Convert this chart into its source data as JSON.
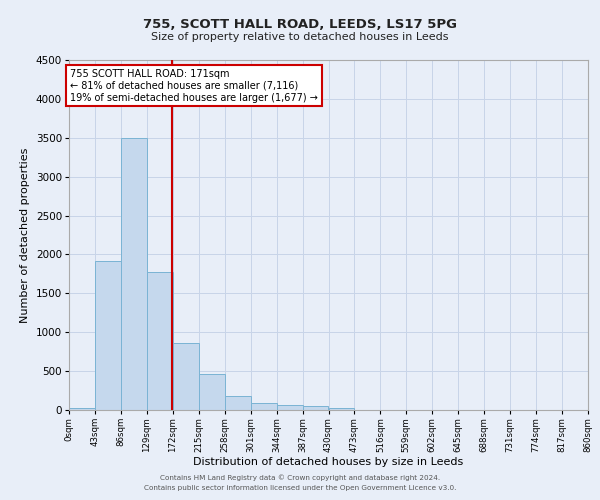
{
  "title_line1": "755, SCOTT HALL ROAD, LEEDS, LS17 5PG",
  "title_line2": "Size of property relative to detached houses in Leeds",
  "xlabel": "Distribution of detached houses by size in Leeds",
  "ylabel": "Number of detached properties",
  "bin_edges": [
    0,
    43,
    86,
    129,
    172,
    215,
    258,
    301,
    344,
    387,
    430,
    473,
    516,
    559,
    602,
    645,
    688,
    731,
    774,
    817,
    860
  ],
  "bar_heights": [
    30,
    1920,
    3500,
    1780,
    860,
    460,
    175,
    95,
    65,
    50,
    30,
    0,
    0,
    0,
    0,
    0,
    0,
    0,
    0,
    0
  ],
  "bar_color": "#c5d8ed",
  "bar_edgecolor": "#7ab3d4",
  "property_size": 171,
  "vline_color": "#cc0000",
  "annotation_text_line1": "755 SCOTT HALL ROAD: 171sqm",
  "annotation_text_line2": "← 81% of detached houses are smaller (7,116)",
  "annotation_text_line3": "19% of semi-detached houses are larger (1,677) →",
  "annotation_box_edgecolor": "#cc0000",
  "annotation_box_facecolor": "#ffffff",
  "ylim": [
    0,
    4500
  ],
  "grid_color": "#c8d4e8",
  "background_color": "#e8eef8",
  "footer_line1": "Contains HM Land Registry data © Crown copyright and database right 2024.",
  "footer_line2": "Contains public sector information licensed under the Open Government Licence v3.0.",
  "tick_labels": [
    "0sqm",
    "43sqm",
    "86sqm",
    "129sqm",
    "172sqm",
    "215sqm",
    "258sqm",
    "301sqm",
    "344sqm",
    "387sqm",
    "430sqm",
    "473sqm",
    "516sqm",
    "559sqm",
    "602sqm",
    "645sqm",
    "688sqm",
    "731sqm",
    "774sqm",
    "817sqm",
    "860sqm"
  ]
}
